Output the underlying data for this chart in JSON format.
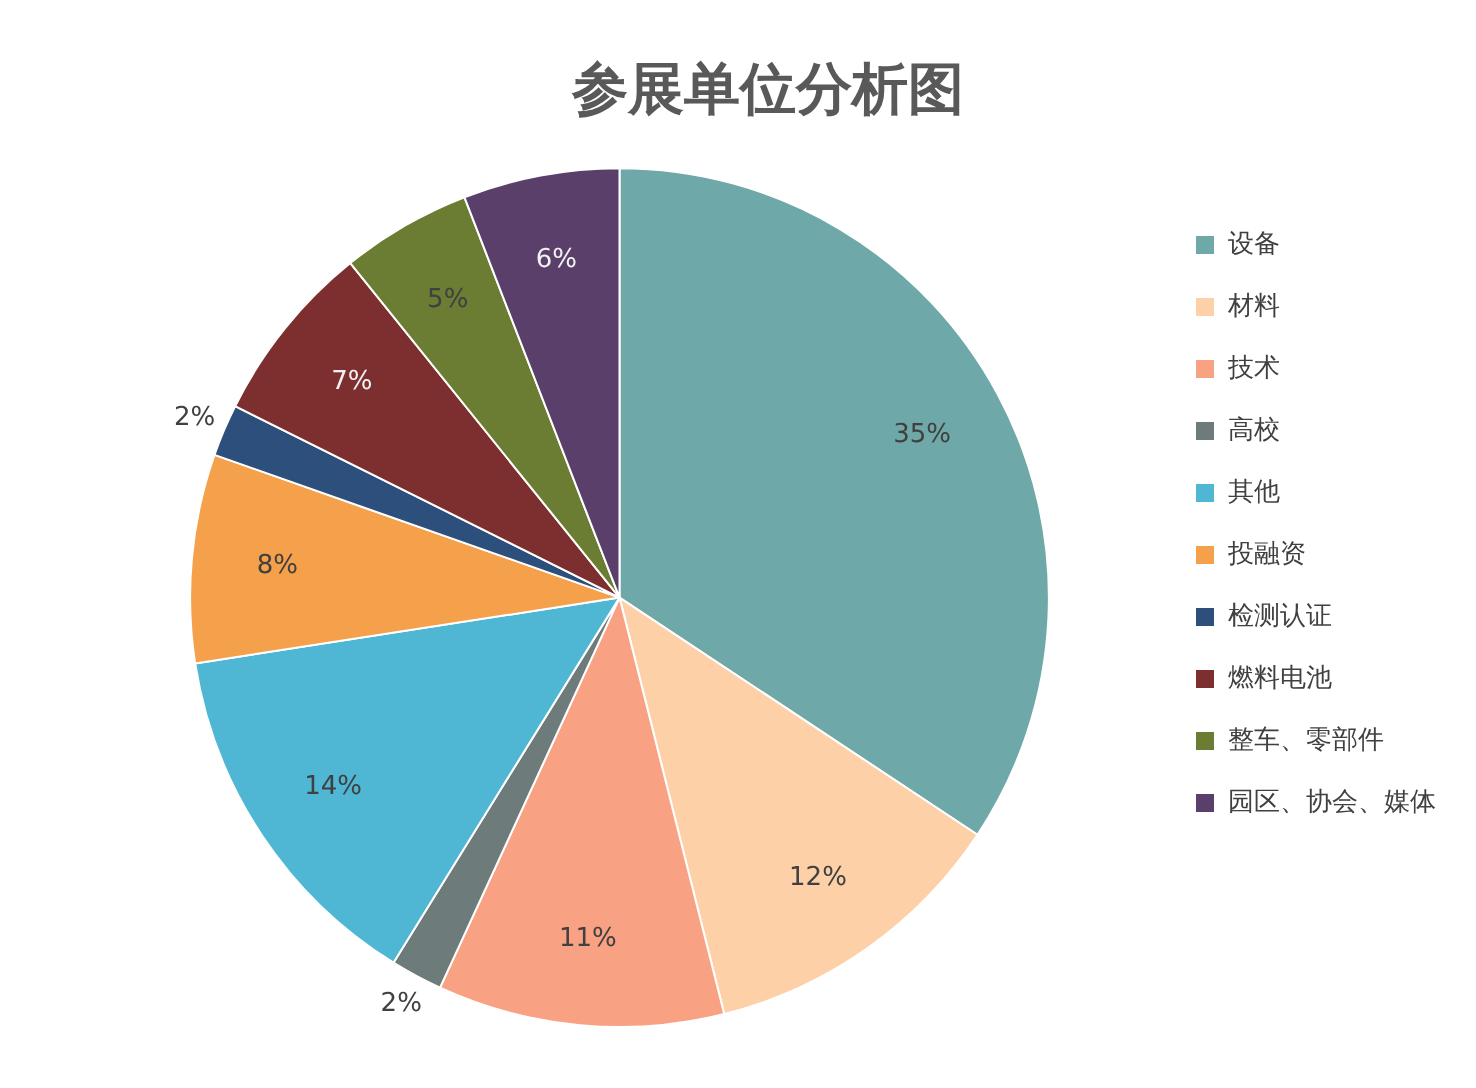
{
  "chart_data": {
    "type": "pie",
    "title": "参展单位分析图",
    "categories": [
      "设备",
      "材料",
      "技术",
      "高校",
      "其他",
      "投融资",
      "检测认证",
      "燃料电池",
      "整车、零部件",
      "园区、协会、媒体"
    ],
    "values": [
      35,
      12,
      11,
      2,
      14,
      8,
      2,
      7,
      5,
      6
    ],
    "value_labels": [
      "35%",
      "12%",
      "11%",
      "2%",
      "14%",
      "8%",
      "2%",
      "7%",
      "5%",
      "6%"
    ],
    "colors": [
      "#6fa8a8",
      "#fdd0a8",
      "#f9a283",
      "#6e7b7b",
      "#4fb7d3",
      "#f5a04a",
      "#2d4f7c",
      "#7d2f2f",
      "#6b7d32",
      "#5a3f6b"
    ],
    "legend": "right"
  }
}
